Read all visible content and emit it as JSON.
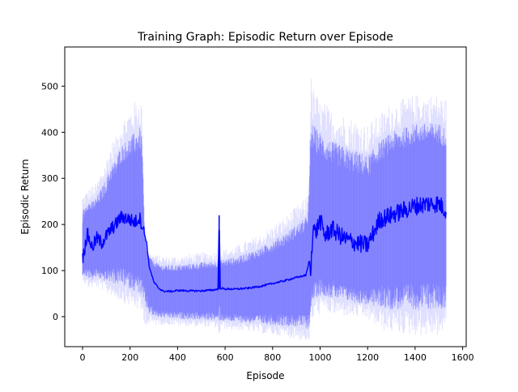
{
  "chart_data": {
    "type": "line",
    "title": "Training Graph: Episodic Return over Episode",
    "xlabel": "Episode",
    "ylabel": "Episodic Return",
    "xlim": [
      -75,
      1615
    ],
    "ylim": [
      -65,
      585
    ],
    "xticks": [
      0,
      200,
      400,
      600,
      800,
      1000,
      1200,
      1400,
      1600
    ],
    "yticks": [
      0,
      100,
      200,
      300,
      400,
      500
    ],
    "grid": false,
    "legend": "none",
    "colors": {
      "mean_line": "#0000ff",
      "std_band": "#6a6aff",
      "envelope": "#c8c8ff"
    },
    "series": [
      {
        "x": [
          0,
          20,
          40,
          60,
          80,
          100,
          120,
          140,
          160,
          180,
          200,
          220,
          240,
          250,
          260,
          270,
          280,
          300,
          320,
          340,
          380,
          400,
          450,
          500,
          550,
          570,
          575,
          580,
          600,
          650,
          700,
          750,
          800,
          850,
          900,
          940,
          950,
          955,
          960,
          970,
          980,
          1000,
          1020,
          1050,
          1100,
          1150,
          1200,
          1250,
          1300,
          1350,
          1400,
          1450,
          1500,
          1530
        ],
        "mean": [
          125,
          180,
          150,
          170,
          160,
          175,
          190,
          200,
          215,
          215,
          210,
          205,
          215,
          200,
          180,
          160,
          110,
          75,
          62,
          55,
          55,
          57,
          56,
          56,
          58,
          60,
          220,
          62,
          60,
          60,
          62,
          66,
          72,
          78,
          85,
          90,
          110,
          125,
          90,
          200,
          180,
          210,
          175,
          190,
          170,
          160,
          155,
          210,
          220,
          230,
          240,
          245,
          245,
          230
        ],
        "upper": [
          230,
          250,
          250,
          260,
          280,
          300,
          330,
          340,
          370,
          380,
          390,
          400,
          410,
          400,
          200,
          140,
          130,
          120,
          115,
          112,
          112,
          112,
          115,
          118,
          120,
          122,
          140,
          122,
          125,
          130,
          140,
          150,
          165,
          180,
          200,
          215,
          240,
          300,
          420,
          420,
          410,
          400,
          390,
          380,
          370,
          360,
          350,
          380,
          400,
          410,
          420,
          420,
          420,
          410
        ],
        "lower": [
          90,
          85,
          80,
          85,
          80,
          75,
          75,
          70,
          70,
          65,
          60,
          55,
          50,
          40,
          25,
          15,
          5,
          0,
          -2,
          -3,
          -4,
          -5,
          -6,
          -7,
          -8,
          -9,
          -10,
          -10,
          -10,
          -12,
          -14,
          -16,
          -18,
          -20,
          -22,
          -25,
          -28,
          -30,
          20,
          30,
          40,
          45,
          45,
          40,
          35,
          30,
          25,
          20,
          15,
          15,
          15,
          15,
          15,
          15
        ]
      }
    ]
  }
}
